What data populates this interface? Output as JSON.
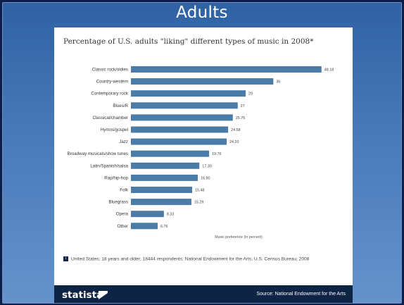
{
  "slide": {
    "title": "Adults"
  },
  "chart_data": {
    "type": "bar",
    "orientation": "horizontal",
    "title": "Percentage of U.S. adults \"liking\" different types of music in 2008*",
    "xlabel": "Music preference (in percent)",
    "ylabel": "",
    "categories": [
      "Classic rock/oldies",
      "Country-western",
      "Contemporary rock",
      "Blues/R",
      "Classical/chamber",
      "Hymns/gospel",
      "Jazz",
      "Broadway musicals/show tunes",
      "Latin/Spanish/salsa",
      "Rap/hip-hop",
      "Folk",
      "Bluegrass",
      "Opera",
      "Other"
    ],
    "values": [
      48.18,
      36,
      29,
      27,
      25.76,
      24.58,
      24.2,
      19.76,
      17.3,
      16.9,
      15.48,
      15.29,
      8.33,
      6.76
    ],
    "value_labels": [
      "48.18",
      "36",
      "29",
      "27",
      "25.76",
      "24.58",
      "24.20",
      "19.76",
      "17.30",
      "16.90",
      "15.48",
      "15.29",
      "8.33",
      "6.76"
    ],
    "xlim": [
      0,
      50
    ],
    "grid": false,
    "bar_color": "#4b7ca8"
  },
  "footnote": {
    "text": "United States; 18 years and older; 18444 respondents; National Endowment for the Arts; U.S. Census Bureau; 2008"
  },
  "footer": {
    "brand": "statista",
    "source": "Source: National Endowment for the Arts"
  }
}
